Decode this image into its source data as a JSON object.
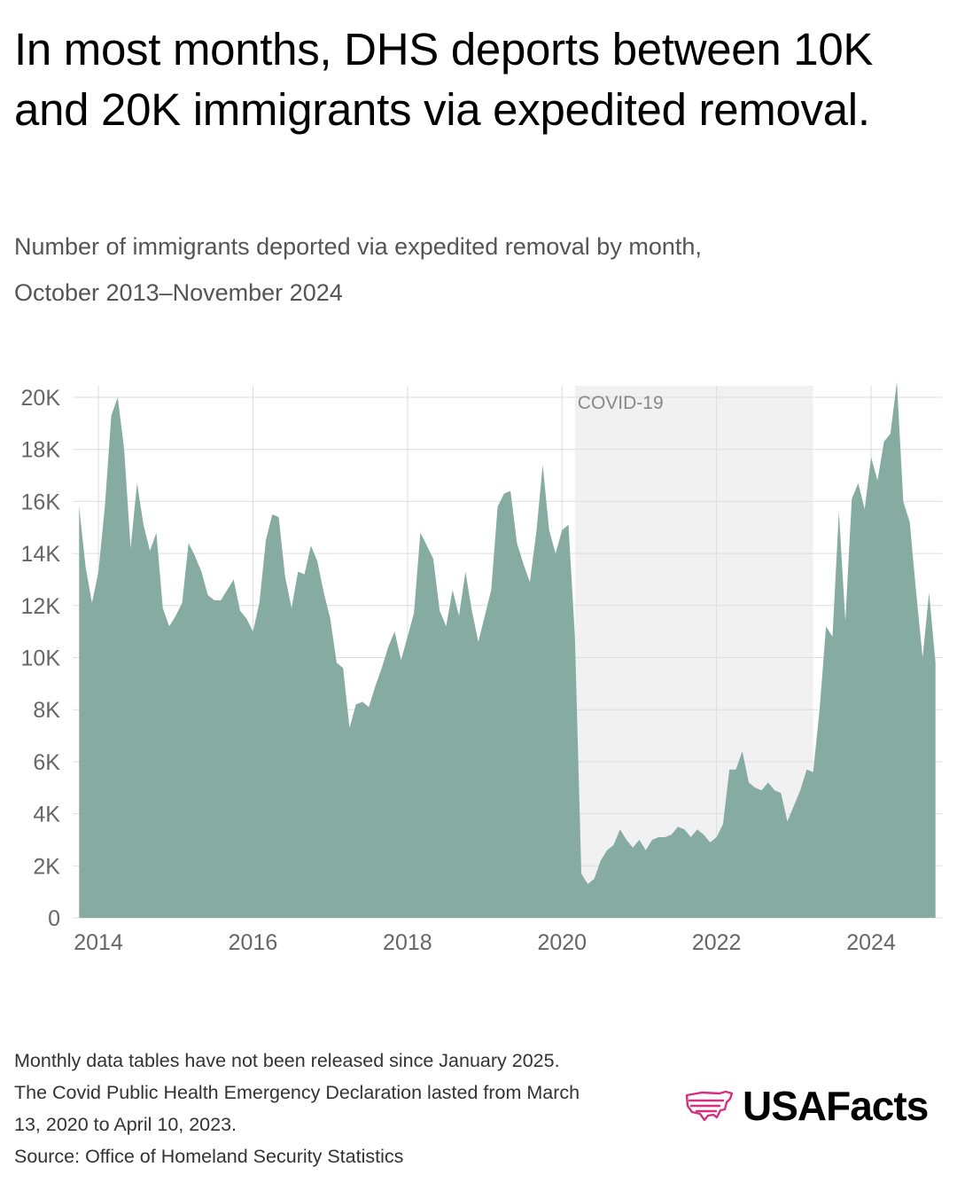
{
  "title": "In most months, DHS deports between 10K and 20K immigrants via expedited removal.",
  "subtitle_line1": "Number of immigrants deported via expedited removal by month,",
  "subtitle_line2": "October 2013–November 2024",
  "footer": {
    "note1": "Monthly data tables have not been released since January 2025.",
    "note2": "The Covid Public Health Emergency Declaration lasted from March",
    "note3": "13, 2020 to April 10, 2023.",
    "source": "Source: Office of Homeland Security Statistics"
  },
  "logo": {
    "text": "USAFacts",
    "icon": "us-map-outline-icon",
    "color": "#d62f7e"
  },
  "colors": {
    "area": "#7fa89d",
    "shade": "#f1f1f1",
    "grid": "#dddddd",
    "axis_text": "#666666"
  },
  "chart_data": {
    "type": "area",
    "title": "",
    "xlabel": "",
    "ylabel": "",
    "xlim": [
      "2013-09",
      "2024-12"
    ],
    "ylim": [
      0,
      20000
    ],
    "grid": true,
    "y_ticks": [
      0,
      2000,
      4000,
      6000,
      8000,
      10000,
      12000,
      14000,
      16000,
      18000,
      20000
    ],
    "y_tick_labels": [
      "0",
      "2K",
      "4K",
      "6K",
      "8K",
      "10K",
      "12K",
      "14K",
      "16K",
      "18K",
      "20K"
    ],
    "x_ticks": [
      "2014-01",
      "2016-01",
      "2018-01",
      "2020-01",
      "2022-01",
      "2024-01"
    ],
    "x_tick_labels": [
      "2014",
      "2016",
      "2018",
      "2020",
      "2022",
      "2024"
    ],
    "annotation": {
      "label": "COVID-19",
      "start": "2020-03",
      "end": "2023-04"
    },
    "series": [
      {
        "start": "2013-10",
        "end": "2024-11",
        "values": [
          15800,
          13500,
          12100,
          13300,
          15800,
          19300,
          20000,
          18000,
          14200,
          16700,
          15100,
          14100,
          14800,
          11900,
          11200,
          11600,
          12100,
          14400,
          13900,
          13300,
          12400,
          12200,
          12200,
          12600,
          13000,
          11800,
          11500,
          11000,
          12100,
          14500,
          15500,
          15400,
          13100,
          11900,
          13300,
          13200,
          14300,
          13700,
          12500,
          11500,
          9800,
          9600,
          7300,
          8200,
          8300,
          8100,
          8900,
          9600,
          10400,
          11000,
          9900,
          10800,
          11700,
          14800,
          14300,
          13800,
          11800,
          11200,
          12600,
          11600,
          13300,
          11800,
          10600,
          11600,
          12600,
          15800,
          16300,
          16400,
          14400,
          13600,
          12900,
          14800,
          17400,
          14900,
          14000,
          14900,
          15100,
          10800,
          1700,
          1300,
          1500,
          2200,
          2600,
          2800,
          3400,
          3000,
          2700,
          3000,
          2600,
          3000,
          3100,
          3100,
          3200,
          3500,
          3400,
          3100,
          3400,
          3200,
          2900,
          3100,
          3600,
          5700,
          5700,
          6400,
          5200,
          5000,
          4900,
          5200,
          4900,
          4800,
          3700,
          4300,
          4900,
          5700,
          5600,
          8000,
          11200,
          10800,
          15600,
          11400,
          16100,
          16700,
          15700,
          17700,
          16800,
          18300,
          18600,
          20600,
          16000,
          15200,
          12500,
          10000,
          12500,
          9800
        ]
      }
    ]
  }
}
